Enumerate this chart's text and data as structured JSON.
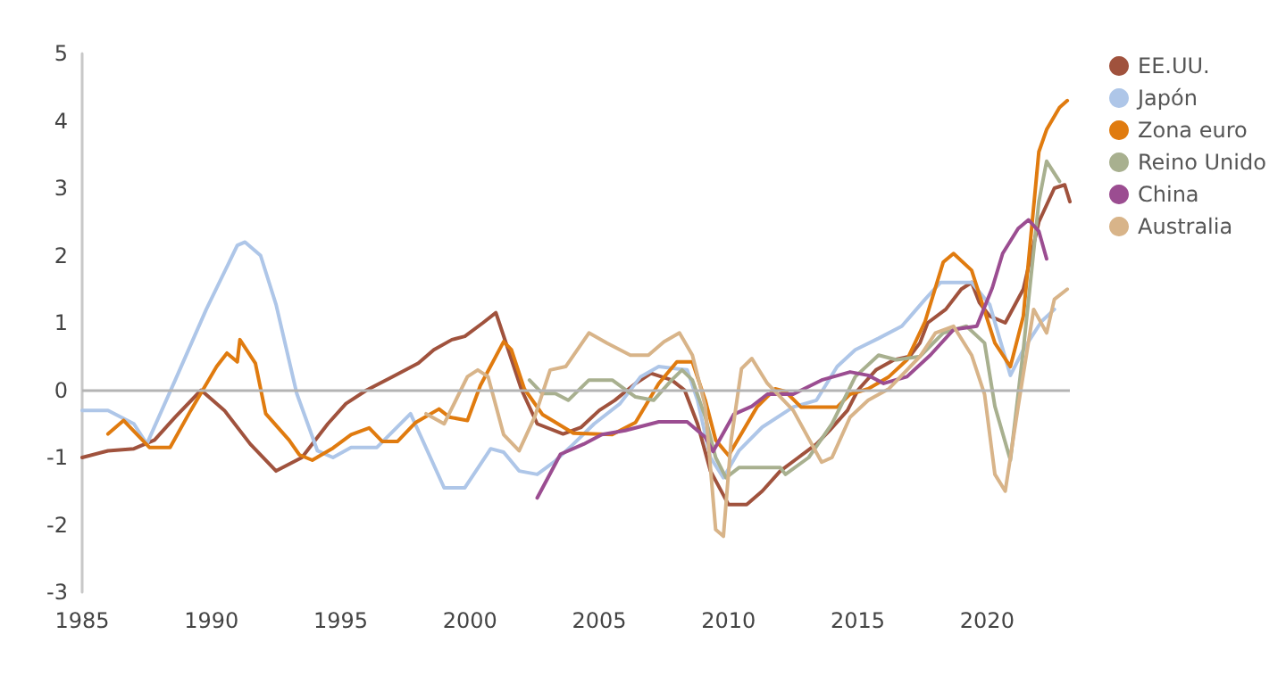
{
  "chart_data": {
    "type": "line",
    "xlim": [
      1985,
      2023.2
    ],
    "xticks": [
      1985,
      1990,
      1995,
      2000,
      2005,
      2010,
      2015,
      2020
    ],
    "ylim": [
      -3,
      5
    ],
    "yticks": [
      -3,
      -2,
      -1,
      0,
      1,
      2,
      3,
      4,
      5
    ],
    "grid": false,
    "legend": "top right",
    "marker": "none",
    "line_style": "solid",
    "ref_lines": [
      {
        "axis": "y",
        "value": 0,
        "color": "#b4b4b4"
      }
    ],
    "series": [
      {
        "name": "EE.UU.",
        "color": "#a0523d",
        "x": [
          1985,
          1986,
          1987,
          1987.8,
          1988.6,
          1989.6,
          1990.5,
          1991.5,
          1992.5,
          1993.5,
          1994.5,
          1995.2,
          1996,
          1997,
          1998,
          1998.6,
          1999.3,
          1999.8,
          2000.5,
          2001,
          2002,
          2002.6,
          2003.6,
          2004.3,
          2005,
          2005.6,
          2006.4,
          2007,
          2007.8,
          2008.3,
          2008.8,
          2009.3,
          2010,
          2010.7,
          2011.3,
          2012,
          2012.7,
          2013.4,
          2013.9,
          2014.6,
          2015,
          2015.7,
          2016.4,
          2017,
          2017.4,
          2017.7,
          2018.4,
          2019,
          2019.4,
          2019.7,
          2020.1,
          2020.7,
          2021.4,
          2022,
          2022.6,
          2023,
          2023.2
        ],
        "values": [
          -1.0,
          -0.9,
          -0.87,
          -0.74,
          -0.4,
          0.0,
          -0.3,
          -0.8,
          -1.2,
          -1.0,
          -0.5,
          -0.2,
          0.0,
          0.2,
          0.4,
          0.6,
          0.75,
          0.8,
          1.0,
          1.15,
          0.0,
          -0.5,
          -0.65,
          -0.55,
          -0.3,
          -0.15,
          0.1,
          0.25,
          0.15,
          0.0,
          -0.5,
          -1.2,
          -1.7,
          -1.7,
          -1.5,
          -1.2,
          -1.0,
          -0.8,
          -0.6,
          -0.3,
          0.0,
          0.3,
          0.45,
          0.5,
          0.7,
          1.0,
          1.2,
          1.5,
          1.6,
          1.3,
          1.1,
          1.0,
          1.5,
          2.5,
          3.0,
          3.05,
          2.8
        ]
      },
      {
        "name": "Japón",
        "color": "#aec6e8",
        "x": [
          1985,
          1986,
          1987,
          1987.5,
          1988.6,
          1989.8,
          1991,
          1991.3,
          1991.9,
          1992.5,
          1993.3,
          1994.1,
          1994.7,
          1995.4,
          1996.4,
          1997.7,
          1999,
          1999.8,
          2000.8,
          2001.3,
          2001.9,
          2002.6,
          2003.3,
          2004,
          2004.8,
          2005.8,
          2006.6,
          2007.3,
          2008.4,
          2008.8,
          2009.3,
          2009.8,
          2010.4,
          2011.3,
          2012.5,
          2013.4,
          2014.2,
          2014.9,
          2015.8,
          2016.7,
          2017.6,
          2018.2,
          2019.4,
          2020.1,
          2020.9,
          2021.4,
          2022.1,
          2022.6
        ],
        "values": [
          -0.3,
          -0.3,
          -0.5,
          -0.8,
          0.15,
          1.2,
          2.15,
          2.2,
          2.0,
          1.27,
          -0.05,
          -0.9,
          -1.0,
          -0.85,
          -0.85,
          -0.35,
          -1.45,
          -1.45,
          -0.87,
          -0.92,
          -1.2,
          -1.25,
          -1.05,
          -0.8,
          -0.5,
          -0.2,
          0.2,
          0.35,
          0.3,
          -0.15,
          -1.0,
          -1.3,
          -0.9,
          -0.55,
          -0.25,
          -0.15,
          0.35,
          0.6,
          0.77,
          0.95,
          1.35,
          1.6,
          1.6,
          1.27,
          0.22,
          0.6,
          1.02,
          1.2
        ]
      },
      {
        "name": "Zona euro",
        "color": "#e07b0f",
        "x": [
          1986,
          1986.6,
          1987.6,
          1988.4,
          1989.2,
          1990.2,
          1990.6,
          1991,
          1991.1,
          1991.7,
          1992.1,
          1993,
          1993.4,
          1993.9,
          1994.7,
          1995.4,
          1996.1,
          1996.6,
          1997.2,
          1997.9,
          1998.8,
          1999.2,
          1999.9,
          2000.4,
          2001.3,
          2001.6,
          2002.1,
          2002.8,
          2004,
          2005.5,
          2006.4,
          2007.3,
          2008,
          2008.6,
          2009.1,
          2009.5,
          2010,
          2011.1,
          2011.8,
          2012.2,
          2012.8,
          2014.2,
          2014.7,
          2015.4,
          2016.2,
          2016.9,
          2017.6,
          2018.3,
          2018.7,
          2019.4,
          2020.3,
          2020.9,
          2021.4,
          2022,
          2022.3,
          2022.8,
          2023.1
        ],
        "values": [
          -0.65,
          -0.45,
          -0.85,
          -0.85,
          -0.3,
          0.35,
          0.55,
          0.42,
          0.75,
          0.4,
          -0.35,
          -0.74,
          -0.96,
          -1.04,
          -0.86,
          -0.66,
          -0.56,
          -0.76,
          -0.76,
          -0.48,
          -0.28,
          -0.4,
          -0.45,
          0.07,
          0.72,
          0.6,
          0.02,
          -0.36,
          -0.64,
          -0.66,
          -0.48,
          0.1,
          0.42,
          0.42,
          -0.15,
          -0.74,
          -0.97,
          -0.25,
          0.02,
          -0.02,
          -0.25,
          -0.25,
          -0.06,
          0.02,
          0.2,
          0.45,
          1.02,
          1.9,
          2.03,
          1.78,
          0.7,
          0.35,
          1.1,
          3.54,
          3.87,
          4.2,
          4.3
        ]
      },
      {
        "name": "Reino Unido",
        "color": "#a8b08f",
        "x": [
          2002.3,
          2002.8,
          2003.3,
          2003.8,
          2004.6,
          2005.5,
          2006.4,
          2007.1,
          2007.8,
          2008.2,
          2008.6,
          2009.1,
          2009.5,
          2009.9,
          2010.4,
          2011.3,
          2012,
          2012.2,
          2013.1,
          2014,
          2014.9,
          2015.8,
          2016.5,
          2017.4,
          2018.3,
          2019.2,
          2019.9,
          2020.3,
          2020.9,
          2021.4,
          2022,
          2022.3,
          2022.8
        ],
        "values": [
          0.15,
          -0.05,
          -0.05,
          -0.15,
          0.15,
          0.15,
          -0.1,
          -0.15,
          0.15,
          0.3,
          0.15,
          -0.4,
          -1.0,
          -1.3,
          -1.15,
          -1.15,
          -1.15,
          -1.25,
          -1.0,
          -0.5,
          0.2,
          0.52,
          0.45,
          0.5,
          0.85,
          0.95,
          0.7,
          -0.24,
          -1.04,
          0.6,
          2.8,
          3.4,
          3.1
        ]
      },
      {
        "name": "China",
        "color": "#9b4d91",
        "x": [
          2002.6,
          2003.5,
          2004.4,
          2005.1,
          2006,
          2007.3,
          2008.4,
          2009.1,
          2009.4,
          2010.2,
          2010.9,
          2011.5,
          2012.5,
          2013.6,
          2014.7,
          2015.4,
          2016,
          2016.9,
          2017.8,
          2018.7,
          2019.6,
          2020.2,
          2020.6,
          2021.2,
          2021.6,
          2022,
          2022.3
        ],
        "values": [
          -1.6,
          -0.95,
          -0.8,
          -0.66,
          -0.6,
          -0.47,
          -0.47,
          -0.7,
          -0.91,
          -0.36,
          -0.24,
          -0.06,
          -0.06,
          0.15,
          0.27,
          0.22,
          0.1,
          0.2,
          0.52,
          0.9,
          0.95,
          1.52,
          2.03,
          2.4,
          2.53,
          2.36,
          1.95
        ]
      },
      {
        "name": "Australia",
        "color": "#d8b489",
        "x": [
          1998.3,
          1999,
          1999.9,
          2000.3,
          2000.7,
          2001.3,
          2001.9,
          2002.5,
          2003.1,
          2003.7,
          2004.6,
          2005.3,
          2006.2,
          2006.9,
          2007.5,
          2008.1,
          2008.6,
          2009.1,
          2009.5,
          2009.8,
          2010.1,
          2010.5,
          2010.9,
          2011.5,
          2012.5,
          2013.6,
          2014,
          2014.7,
          2015.4,
          2016.2,
          2017.4,
          2018,
          2018.7,
          2019.4,
          2019.9,
          2020.3,
          2020.7,
          2021.2,
          2021.8,
          2022.3,
          2022.6,
          2023.1
        ],
        "values": [
          -0.35,
          -0.5,
          0.2,
          0.3,
          0.2,
          -0.66,
          -0.9,
          -0.4,
          0.3,
          0.35,
          0.85,
          0.7,
          0.52,
          0.52,
          0.72,
          0.85,
          0.52,
          -0.24,
          -2.07,
          -2.17,
          -0.74,
          0.32,
          0.47,
          0.1,
          -0.3,
          -1.07,
          -1.0,
          -0.4,
          -0.15,
          0.02,
          0.5,
          0.85,
          0.95,
          0.52,
          -0.06,
          -1.25,
          -1.5,
          -0.24,
          1.2,
          0.85,
          1.35,
          1.5
        ]
      }
    ]
  }
}
